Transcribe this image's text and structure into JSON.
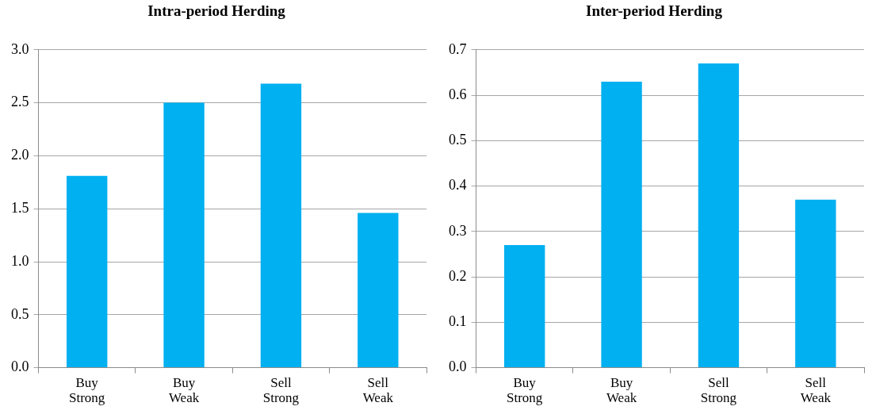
{
  "chart_data": [
    {
      "type": "bar",
      "title": "Intra-period Herding",
      "categories": [
        "Buy Strong",
        "Buy Weak",
        "Sell Strong",
        "Sell Weak"
      ],
      "values": [
        1.81,
        2.5,
        2.68,
        1.46
      ],
      "color": "#00b0f0",
      "ylim": [
        0,
        3
      ],
      "yticks": [
        {
          "value": 0,
          "label": "0.0"
        },
        0.5,
        {
          "value": 1,
          "label": "1.0"
        },
        1.5,
        {
          "value": 2,
          "label": "2.0"
        },
        2.5,
        {
          "value": 3,
          "label": "3.0"
        }
      ],
      "grid": "y"
    },
    {
      "type": "bar",
      "title": "Inter-period Herding",
      "categories": [
        "Buy Strong",
        "Buy Weak",
        "Sell Strong",
        "Sell Weak"
      ],
      "values": [
        0.27,
        0.63,
        0.67,
        0.37
      ],
      "color": "#00b0f0",
      "ylim": [
        0,
        0.7
      ],
      "yticks": [
        {
          "value": 0,
          "label": "0.0"
        },
        0.1,
        0.2,
        0.3,
        0.4,
        0.5,
        0.6,
        0.7
      ],
      "grid": "y"
    }
  ]
}
